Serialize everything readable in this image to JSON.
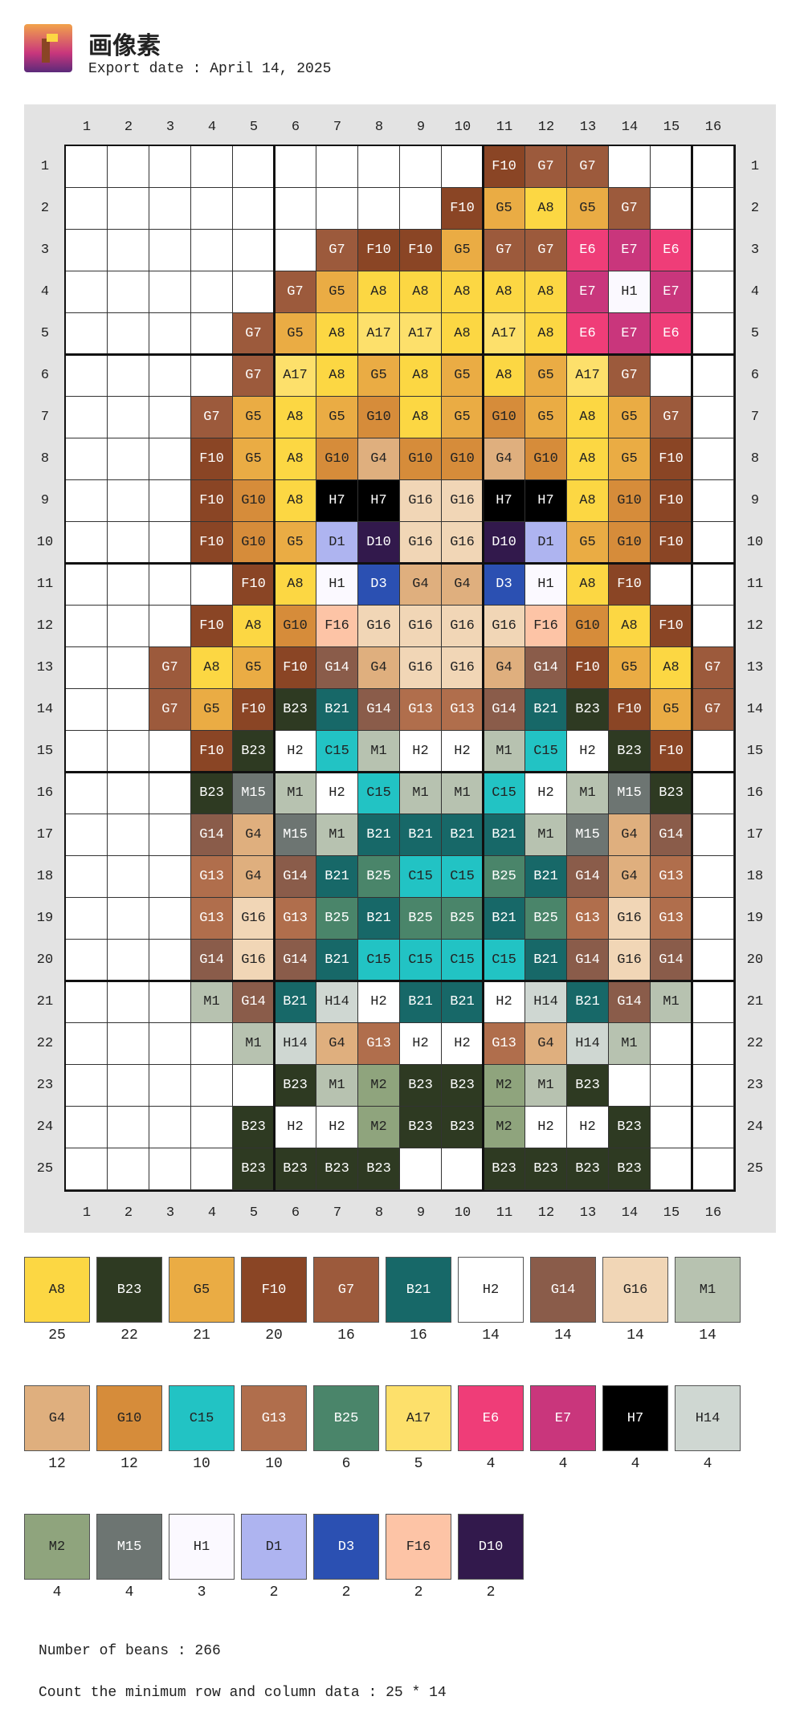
{
  "header": {
    "title": "画像素",
    "export_date": "Export date : April 14, 2025"
  },
  "grid": {
    "columns": [
      1,
      2,
      3,
      4,
      5,
      6,
      7,
      8,
      9,
      10,
      11,
      12,
      13,
      14,
      15,
      16
    ],
    "row_numbers": [
      1,
      2,
      3,
      4,
      5,
      6,
      7,
      8,
      9,
      10,
      11,
      12,
      13,
      14,
      15,
      16,
      17,
      18,
      19,
      20,
      21,
      22,
      23,
      24,
      25
    ],
    "rows": [
      [
        null,
        null,
        null,
        null,
        null,
        null,
        null,
        null,
        null,
        null,
        "F10",
        "G7",
        "G7",
        null,
        null,
        null
      ],
      [
        null,
        null,
        null,
        null,
        null,
        null,
        null,
        null,
        null,
        "F10",
        "G5",
        "A8",
        "G5",
        "G7",
        null,
        null
      ],
      [
        null,
        null,
        null,
        null,
        null,
        null,
        "G7",
        "F10",
        "F10",
        "G5",
        "G7",
        "G7",
        "E6",
        "E7",
        "E6",
        null
      ],
      [
        null,
        null,
        null,
        null,
        null,
        "G7",
        "G5",
        "A8",
        "A8",
        "A8",
        "A8",
        "A8",
        "E7",
        "H1",
        "E7",
        null
      ],
      [
        null,
        null,
        null,
        null,
        "G7",
        "G5",
        "A8",
        "A17",
        "A17",
        "A8",
        "A17",
        "A8",
        "E6",
        "E7",
        "E6",
        null
      ],
      [
        null,
        null,
        null,
        null,
        "G7",
        "A17",
        "A8",
        "G5",
        "A8",
        "G5",
        "A8",
        "G5",
        "A17",
        "G7",
        null,
        null
      ],
      [
        null,
        null,
        null,
        "G7",
        "G5",
        "A8",
        "G5",
        "G10",
        "A8",
        "G5",
        "G10",
        "G5",
        "A8",
        "G5",
        "G7",
        null
      ],
      [
        null,
        null,
        null,
        "F10",
        "G5",
        "A8",
        "G10",
        "G4",
        "G10",
        "G10",
        "G4",
        "G10",
        "A8",
        "G5",
        "F10",
        null
      ],
      [
        null,
        null,
        null,
        "F10",
        "G10",
        "A8",
        "H7",
        "H7",
        "G16",
        "G16",
        "H7",
        "H7",
        "A8",
        "G10",
        "F10",
        null
      ],
      [
        null,
        null,
        null,
        "F10",
        "G10",
        "G5",
        "D1",
        "D10",
        "G16",
        "G16",
        "D10",
        "D1",
        "G5",
        "G10",
        "F10",
        null
      ],
      [
        null,
        null,
        null,
        null,
        "F10",
        "A8",
        "H1",
        "D3",
        "G4",
        "G4",
        "D3",
        "H1",
        "A8",
        "F10",
        null,
        null
      ],
      [
        null,
        null,
        null,
        "F10",
        "A8",
        "G10",
        "F16",
        "G16",
        "G16",
        "G16",
        "G16",
        "F16",
        "G10",
        "A8",
        "F10",
        null
      ],
      [
        null,
        null,
        "G7",
        "A8",
        "G5",
        "F10",
        "G14",
        "G4",
        "G16",
        "G16",
        "G4",
        "G14",
        "F10",
        "G5",
        "A8",
        "G7"
      ],
      [
        null,
        null,
        "G7",
        "G5",
        "F10",
        "B23",
        "B21",
        "G14",
        "G13",
        "G13",
        "G14",
        "B21",
        "B23",
        "F10",
        "G5",
        "G7"
      ],
      [
        null,
        null,
        null,
        "F10",
        "B23",
        "H2",
        "C15",
        "M1",
        "H2",
        "H2",
        "M1",
        "C15",
        "H2",
        "B23",
        "F10",
        null
      ],
      [
        null,
        null,
        null,
        "B23",
        "M15",
        "M1",
        "H2",
        "C15",
        "M1",
        "M1",
        "C15",
        "H2",
        "M1",
        "M15",
        "B23",
        null
      ],
      [
        null,
        null,
        null,
        "G14",
        "G4",
        "M15",
        "M1",
        "B21",
        "B21",
        "B21",
        "B21",
        "M1",
        "M15",
        "G4",
        "G14",
        null
      ],
      [
        null,
        null,
        null,
        "G13",
        "G4",
        "G14",
        "B21",
        "B25",
        "C15",
        "C15",
        "B25",
        "B21",
        "G14",
        "G4",
        "G13",
        null
      ],
      [
        null,
        null,
        null,
        "G13",
        "G16",
        "G13",
        "B25",
        "B21",
        "B25",
        "B25",
        "B21",
        "B25",
        "G13",
        "G16",
        "G13",
        null
      ],
      [
        null,
        null,
        null,
        "G14",
        "G16",
        "G14",
        "B21",
        "C15",
        "C15",
        "C15",
        "C15",
        "B21",
        "G14",
        "G16",
        "G14",
        null
      ],
      [
        null,
        null,
        null,
        "M1",
        "G14",
        "B21",
        "H14",
        "H2",
        "B21",
        "B21",
        "H2",
        "H14",
        "B21",
        "G14",
        "M1",
        null
      ],
      [
        null,
        null,
        null,
        null,
        "M1",
        "H14",
        "G4",
        "G13",
        "H2",
        "H2",
        "G13",
        "G4",
        "H14",
        "M1",
        null,
        null
      ],
      [
        null,
        null,
        null,
        null,
        null,
        "B23",
        "M1",
        "M2",
        "B23",
        "B23",
        "M2",
        "M1",
        "B23",
        null,
        null,
        null
      ],
      [
        null,
        null,
        null,
        null,
        "B23",
        "H2",
        "H2",
        "M2",
        "B23",
        "B23",
        "M2",
        "H2",
        "H2",
        "B23",
        null,
        null
      ],
      [
        null,
        null,
        null,
        null,
        "B23",
        "B23",
        "B23",
        "B23",
        null,
        null,
        "B23",
        "B23",
        "B23",
        "B23",
        null,
        null
      ]
    ]
  },
  "palette": [
    {
      "code": "A8",
      "color": "#fcd743",
      "count": 25
    },
    {
      "code": "B23",
      "color": "#2e3a22",
      "count": 22
    },
    {
      "code": "G5",
      "color": "#eaac44",
      "count": 21
    },
    {
      "code": "F10",
      "color": "#8a4525",
      "count": 20
    },
    {
      "code": "G7",
      "color": "#9c5a3c",
      "count": 16
    },
    {
      "code": "B21",
      "color": "#176868",
      "count": 16
    },
    {
      "code": "H2",
      "color": "#ffffff",
      "count": 14
    },
    {
      "code": "G14",
      "color": "#8a5c4a",
      "count": 14
    },
    {
      "code": "G16",
      "color": "#f1d6b6",
      "count": 14
    },
    {
      "code": "M1",
      "color": "#b7c2b0",
      "count": 14
    },
    {
      "code": "G4",
      "color": "#dfaf7e",
      "count": 12
    },
    {
      "code": "G10",
      "color": "#d68c3a",
      "count": 12
    },
    {
      "code": "C15",
      "color": "#22c3c4",
      "count": 10
    },
    {
      "code": "G13",
      "color": "#b06e4c",
      "count": 10
    },
    {
      "code": "B25",
      "color": "#4a856a",
      "count": 6
    },
    {
      "code": "A17",
      "color": "#fde06b",
      "count": 5
    },
    {
      "code": "E6",
      "color": "#ef3d78",
      "count": 4
    },
    {
      "code": "E7",
      "color": "#c9367c",
      "count": 4
    },
    {
      "code": "H7",
      "color": "#000000",
      "count": 4
    },
    {
      "code": "H14",
      "color": "#cfd7d2",
      "count": 4
    },
    {
      "code": "M2",
      "color": "#8fa47d",
      "count": 4
    },
    {
      "code": "M15",
      "color": "#6d7572",
      "count": 4
    },
    {
      "code": "H1",
      "color": "#fbf9ff",
      "count": 3
    },
    {
      "code": "D1",
      "color": "#aeb4f0",
      "count": 2
    },
    {
      "code": "D3",
      "color": "#2b50b2",
      "count": 2
    },
    {
      "code": "F16",
      "color": "#fdc4a6",
      "count": 2
    },
    {
      "code": "D10",
      "color": "#32194c",
      "count": 2
    }
  ],
  "footer": {
    "beans": "Number of beans : 266",
    "dimensions": "Count the minimum row and column data : 25 * 14"
  }
}
